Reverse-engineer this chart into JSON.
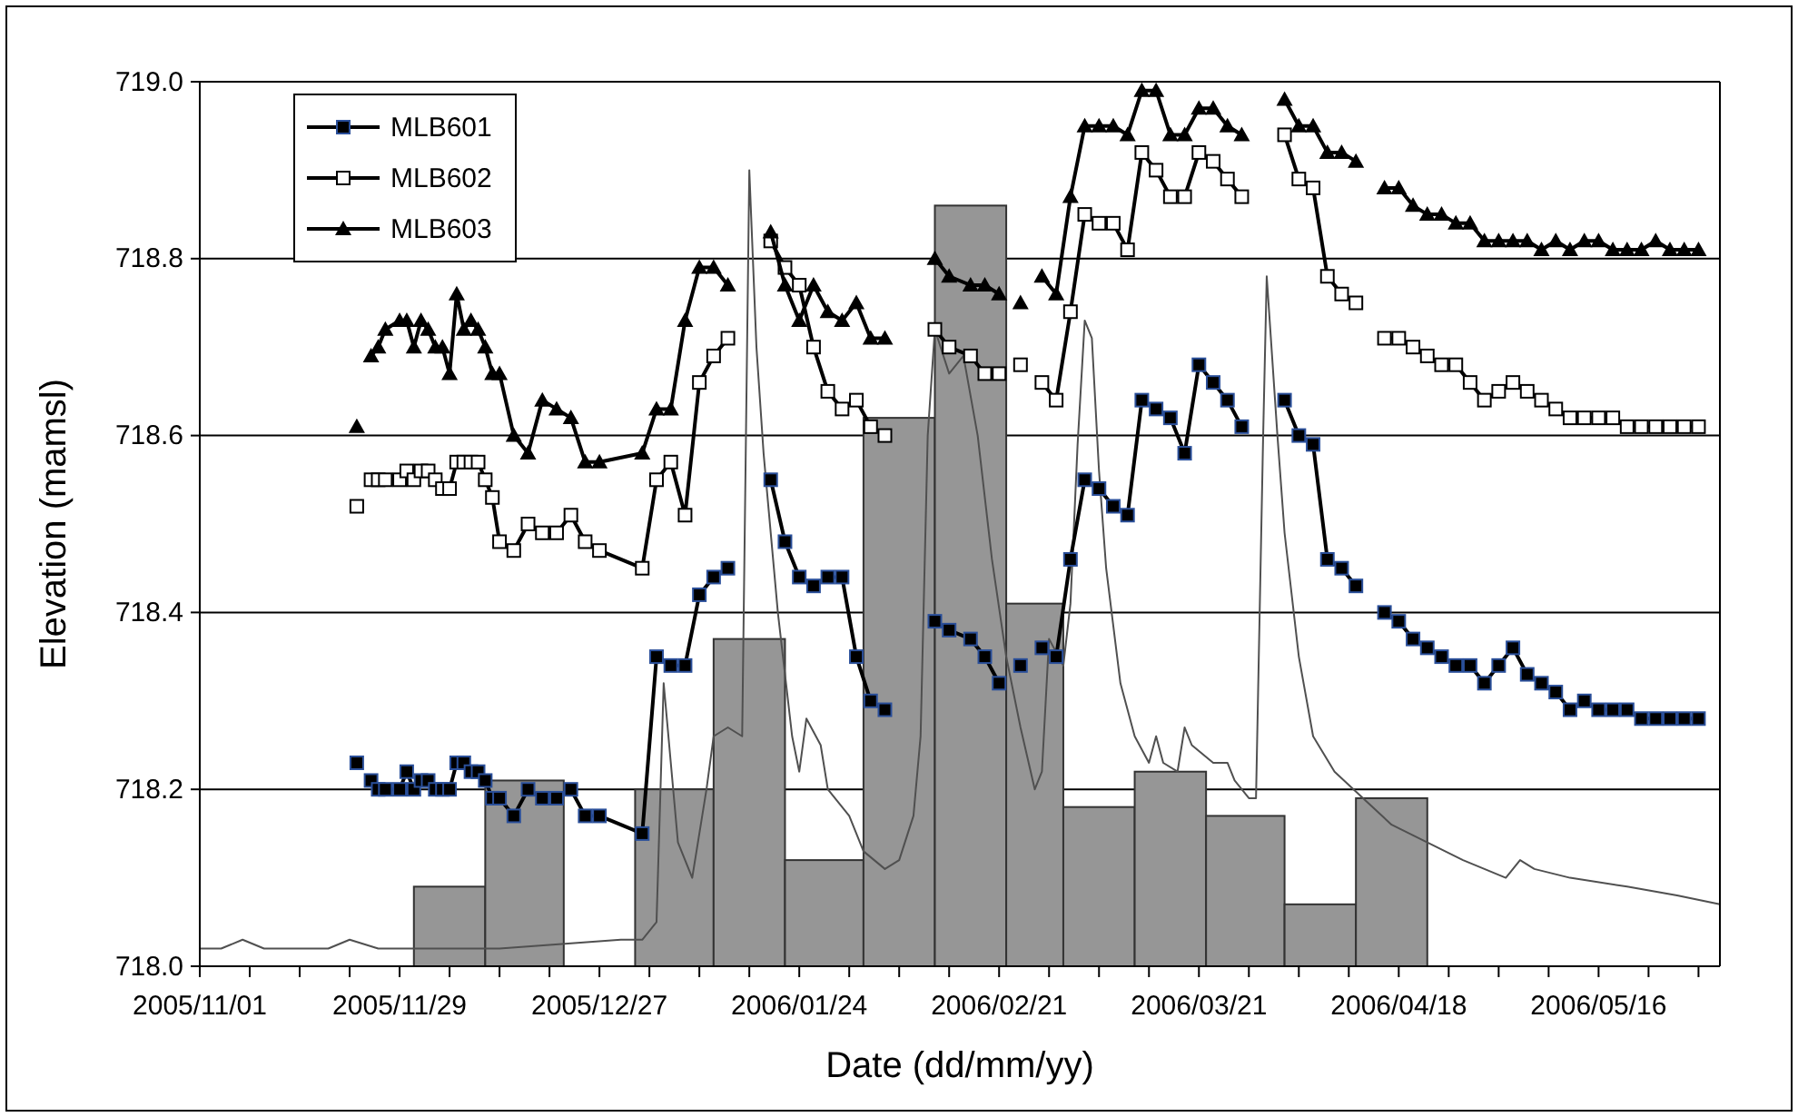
{
  "chart_data": {
    "type": "line",
    "xlabel": "Date (dd/mm/yy)",
    "ylabel": "Elevation (mamsl)",
    "xlim": [
      "2005-11-01",
      "2006-06-02"
    ],
    "xticks": [
      {
        "value": "2005-11-01",
        "label": "2005/11/01"
      },
      {
        "value": "2005-11-08",
        "label": null
      },
      {
        "value": "2005-11-15",
        "label": null
      },
      {
        "value": "2005-11-22",
        "label": null
      },
      {
        "value": "2005-11-29",
        "label": "2005/11/29"
      },
      {
        "value": "2005-12-06",
        "label": null
      },
      {
        "value": "2005-12-13",
        "label": null
      },
      {
        "value": "2005-12-20",
        "label": null
      },
      {
        "value": "2005-12-27",
        "label": "2005/12/27"
      },
      {
        "value": "2006-01-03",
        "label": null
      },
      {
        "value": "2006-01-10",
        "label": null
      },
      {
        "value": "2006-01-17",
        "label": null
      },
      {
        "value": "2006-01-24",
        "label": "2006/01/24"
      },
      {
        "value": "2006-01-31",
        "label": null
      },
      {
        "value": "2006-02-07",
        "label": null
      },
      {
        "value": "2006-02-14",
        "label": null
      },
      {
        "value": "2006-02-21",
        "label": "2006/02/21"
      },
      {
        "value": "2006-02-28",
        "label": null
      },
      {
        "value": "2006-03-07",
        "label": null
      },
      {
        "value": "2006-03-14",
        "label": null
      },
      {
        "value": "2006-03-21",
        "label": "2006/03/21"
      },
      {
        "value": "2006-03-28",
        "label": null
      },
      {
        "value": "2006-04-04",
        "label": null
      },
      {
        "value": "2006-04-11",
        "label": null
      },
      {
        "value": "2006-04-18",
        "label": "2006/04/18"
      },
      {
        "value": "2006-04-25",
        "label": null
      },
      {
        "value": "2006-05-02",
        "label": null
      },
      {
        "value": "2006-05-09",
        "label": null
      },
      {
        "value": "2006-05-16",
        "label": "2006/05/16"
      },
      {
        "value": "2006-05-23",
        "label": null
      },
      {
        "value": "2006-05-30",
        "label": null
      }
    ],
    "ylim": [
      718,
      719
    ],
    "yticks": [
      {
        "value": 718,
        "label": "718.0"
      },
      718.2,
      718.4,
      718.6,
      718.8,
      {
        "value": 719,
        "label": "719.0"
      }
    ],
    "grid": "y",
    "legend": "top left",
    "x": [
      "2005-11-23",
      "2005-11-24",
      "2005-11-25",
      "2005-11-26",
      "2005-11-27",
      "2005-11-29",
      "2005-11-30",
      "2005-12-01",
      "2005-12-02",
      "2005-12-03",
      "2005-12-04",
      "2005-12-05",
      "2005-12-06",
      "2005-12-07",
      "2005-12-08",
      "2005-12-09",
      "2005-12-10",
      "2005-12-11",
      "2005-12-12",
      "2005-12-13",
      "2005-12-15",
      "2005-12-17",
      "2005-12-19",
      "2005-12-21",
      "2005-12-23",
      "2005-12-25",
      "2005-12-27",
      "2006-01-02",
      "2006-01-04",
      "2006-01-06",
      "2006-01-08",
      "2006-01-10",
      "2006-01-12",
      "2006-01-14",
      "2006-01-17",
      "2006-01-20",
      "2006-01-22",
      "2006-01-24",
      "2006-01-26",
      "2006-01-28",
      "2006-01-30",
      "2006-02-01",
      "2006-02-03",
      "2006-02-05",
      "2006-02-08",
      "2006-02-12",
      "2006-02-14",
      "2006-02-17",
      "2006-02-19",
      "2006-02-21",
      "2006-02-22",
      "2006-02-24",
      "2006-02-25",
      "2006-02-27",
      "2006-03-01",
      "2006-03-03",
      "2006-03-05",
      "2006-03-07",
      "2006-03-09",
      "2006-03-11",
      "2006-03-13",
      "2006-03-15",
      "2006-03-17",
      "2006-03-19",
      "2006-03-21",
      "2006-03-23",
      "2006-03-25",
      "2006-03-27",
      "2006-03-30",
      "2006-04-02",
      "2006-04-04",
      "2006-04-06",
      "2006-04-08",
      "2006-04-10",
      "2006-04-12",
      "2006-04-14",
      "2006-04-16",
      "2006-04-18",
      "2006-04-20",
      "2006-04-22",
      "2006-04-24",
      "2006-04-26",
      "2006-04-28",
      "2006-04-30",
      "2006-05-02",
      "2006-05-04",
      "2006-05-06",
      "2006-05-08",
      "2006-05-10",
      "2006-05-12",
      "2006-05-14",
      "2006-05-16",
      "2006-05-18",
      "2006-05-20",
      "2006-05-22",
      "2006-05-24",
      "2006-05-26",
      "2006-05-28",
      "2006-05-30"
    ],
    "series": [
      {
        "type": "histogram",
        "color": "#969696",
        "bins": [
          "2005-12-01",
          "2005-12-11",
          "2005-12-22",
          "2006-01-01",
          "2006-01-12",
          "2006-01-22",
          "2006-02-02",
          "2006-02-12",
          "2006-02-22",
          "2006-03-02",
          "2006-03-12",
          "2006-03-22",
          "2006-04-02",
          "2006-04-12",
          "2006-04-22"
        ],
        "values": [
          718.09,
          718.21,
          718,
          718.2,
          718.37,
          718.12,
          718.62,
          718.86,
          718.41,
          718.18,
          718.22,
          718.17,
          718.07,
          718.19
        ]
      },
      {
        "type": "line",
        "color": "#505050",
        "marker": "none",
        "x": [
          "2005-11-01",
          "2005-11-04",
          "2005-11-07",
          "2005-11-10",
          "2005-11-19",
          "2005-11-22",
          "2005-11-26",
          "2005-12-13",
          "2005-12-30",
          "2006-01-02",
          "2006-01-04",
          "2006-01-05",
          "2006-01-06",
          "2006-01-07",
          "2006-01-09",
          "2006-01-10",
          "2006-01-11",
          "2006-01-12",
          "2006-01-14",
          "2006-01-16",
          "2006-01-17",
          "2006-01-18",
          "2006-01-19",
          "2006-01-21",
          "2006-01-23",
          "2006-01-24",
          "2006-01-25",
          "2006-01-27",
          "2006-01-28",
          "2006-01-31",
          "2006-02-02",
          "2006-02-05",
          "2006-02-07",
          "2006-02-09",
          "2006-02-10",
          "2006-02-11",
          "2006-02-12",
          "2006-02-14",
          "2006-02-16",
          "2006-02-18",
          "2006-02-20",
          "2006-02-22",
          "2006-02-24",
          "2006-02-26",
          "2006-02-27",
          "2006-02-28",
          "2006-03-02",
          "2006-03-03",
          "2006-03-04",
          "2006-03-05",
          "2006-03-06",
          "2006-03-07",
          "2006-03-08",
          "2006-03-10",
          "2006-03-12",
          "2006-03-14",
          "2006-03-15",
          "2006-03-16",
          "2006-03-18",
          "2006-03-19",
          "2006-03-20",
          "2006-03-23",
          "2006-03-25",
          "2006-03-26",
          "2006-03-28",
          "2006-03-29",
          "2006-03-30",
          "2006-03-30T12:00",
          "2006-03-31",
          "2006-04-01",
          "2006-04-02",
          "2006-04-04",
          "2006-04-06",
          "2006-04-09",
          "2006-04-13",
          "2006-04-17",
          "2006-04-22",
          "2006-04-27",
          "2006-05-03",
          "2006-05-05",
          "2006-05-07",
          "2006-05-12",
          "2006-05-20",
          "2006-05-27",
          "2006-06-02"
        ],
        "values": [
          718.02,
          718.02,
          718.03,
          718.02,
          718.02,
          718.03,
          718.02,
          718.02,
          718.03,
          718.03,
          718.05,
          718.32,
          718.23,
          718.14,
          718.1,
          718.15,
          718.2,
          718.26,
          718.27,
          718.26,
          718.9,
          718.7,
          718.58,
          718.4,
          718.26,
          718.22,
          718.28,
          718.25,
          718.2,
          718.17,
          718.13,
          718.11,
          718.12,
          718.17,
          718.26,
          718.6,
          718.72,
          718.67,
          718.69,
          718.6,
          718.46,
          718.35,
          718.27,
          718.2,
          718.22,
          718.37,
          718.34,
          718.41,
          718.59,
          718.73,
          718.71,
          718.56,
          718.45,
          718.32,
          718.26,
          718.23,
          718.26,
          718.23,
          718.22,
          718.27,
          718.25,
          718.23,
          718.23,
          718.21,
          718.19,
          718.19,
          718.6,
          718.78,
          718.72,
          718.6,
          718.49,
          718.35,
          718.26,
          718.22,
          718.19,
          718.16,
          718.14,
          718.12,
          718.1,
          718.12,
          718.11,
          718.1,
          718.09,
          718.08,
          718.07
        ]
      },
      {
        "name": "MLB601",
        "color": "#000000",
        "marker": "square",
        "values": [
          718.23,
          null,
          718.21,
          718.2,
          718.2,
          718.2,
          718.22,
          718.2,
          718.21,
          718.21,
          718.2,
          718.2,
          718.2,
          718.23,
          718.23,
          718.22,
          718.22,
          718.21,
          718.19,
          718.19,
          718.17,
          718.2,
          718.19,
          718.19,
          718.2,
          718.17,
          718.17,
          718.15,
          718.35,
          718.34,
          718.34,
          718.42,
          718.44,
          718.45,
          null,
          718.55,
          718.48,
          718.44,
          718.43,
          718.44,
          718.44,
          718.35,
          718.3,
          718.29,
          null,
          718.39,
          718.38,
          718.37,
          718.35,
          718.32,
          null,
          718.34,
          null,
          718.36,
          718.35,
          718.46,
          718.55,
          718.54,
          718.52,
          718.51,
          718.64,
          718.63,
          718.62,
          718.58,
          718.68,
          718.66,
          718.64,
          718.61,
          null,
          718.64,
          718.6,
          718.59,
          718.46,
          718.45,
          718.43,
          null,
          718.4,
          718.39,
          718.37,
          718.36,
          718.35,
          718.34,
          718.34,
          718.32,
          718.34,
          718.36,
          718.33,
          718.32,
          718.31,
          718.29,
          718.3,
          718.29,
          718.29,
          718.29,
          718.28,
          718.28,
          718.28,
          718.28,
          718.28
        ]
      },
      {
        "name": "MLB602",
        "color": "#000000",
        "marker": "square-open",
        "values": [
          718.52,
          null,
          718.55,
          718.55,
          718.55,
          718.55,
          718.56,
          718.55,
          718.56,
          718.56,
          718.55,
          718.54,
          718.54,
          718.57,
          718.57,
          718.57,
          718.57,
          718.55,
          718.53,
          718.48,
          718.47,
          718.5,
          718.49,
          718.49,
          718.51,
          718.48,
          718.47,
          718.45,
          718.55,
          718.57,
          718.51,
          718.66,
          718.69,
          718.71,
          null,
          718.82,
          718.79,
          718.77,
          718.7,
          718.65,
          718.63,
          718.64,
          718.61,
          718.6,
          null,
          718.72,
          718.7,
          718.69,
          718.67,
          718.67,
          null,
          718.68,
          null,
          718.66,
          718.64,
          718.74,
          718.85,
          718.84,
          718.84,
          718.81,
          718.92,
          718.9,
          718.87,
          718.87,
          718.92,
          718.91,
          718.89,
          718.87,
          null,
          718.94,
          718.89,
          718.88,
          718.78,
          718.76,
          718.75,
          null,
          718.71,
          718.71,
          718.7,
          718.69,
          718.68,
          718.68,
          718.66,
          718.64,
          718.65,
          718.66,
          718.65,
          718.64,
          718.63,
          718.62,
          718.62,
          718.62,
          718.62,
          718.61,
          718.61,
          718.61,
          718.61,
          718.61,
          718.61
        ]
      },
      {
        "name": "MLB603",
        "color": "#000000",
        "marker": "triangle",
        "values": [
          718.61,
          null,
          718.69,
          718.7,
          718.72,
          718.73,
          718.73,
          718.7,
          718.73,
          718.72,
          718.7,
          718.7,
          718.67,
          718.76,
          718.72,
          718.73,
          718.72,
          718.7,
          718.67,
          718.67,
          718.6,
          718.58,
          718.64,
          718.63,
          718.62,
          718.57,
          718.57,
          718.58,
          718.63,
          718.63,
          718.73,
          718.79,
          718.79,
          718.77,
          null,
          718.83,
          718.77,
          718.73,
          718.77,
          718.74,
          718.73,
          718.75,
          718.71,
          718.71,
          null,
          718.8,
          718.78,
          718.77,
          718.77,
          718.76,
          null,
          718.75,
          null,
          718.78,
          718.76,
          718.87,
          718.95,
          718.95,
          718.95,
          718.94,
          718.99,
          718.99,
          718.94,
          718.94,
          718.97,
          718.97,
          718.95,
          718.94,
          null,
          718.98,
          718.95,
          718.95,
          718.92,
          718.92,
          718.91,
          null,
          718.88,
          718.88,
          718.86,
          718.85,
          718.85,
          718.84,
          718.84,
          718.82,
          718.82,
          718.82,
          718.82,
          718.81,
          718.82,
          718.81,
          718.82,
          718.82,
          718.81,
          718.81,
          718.81,
          718.82,
          718.81,
          718.81,
          718.81
        ]
      }
    ]
  }
}
